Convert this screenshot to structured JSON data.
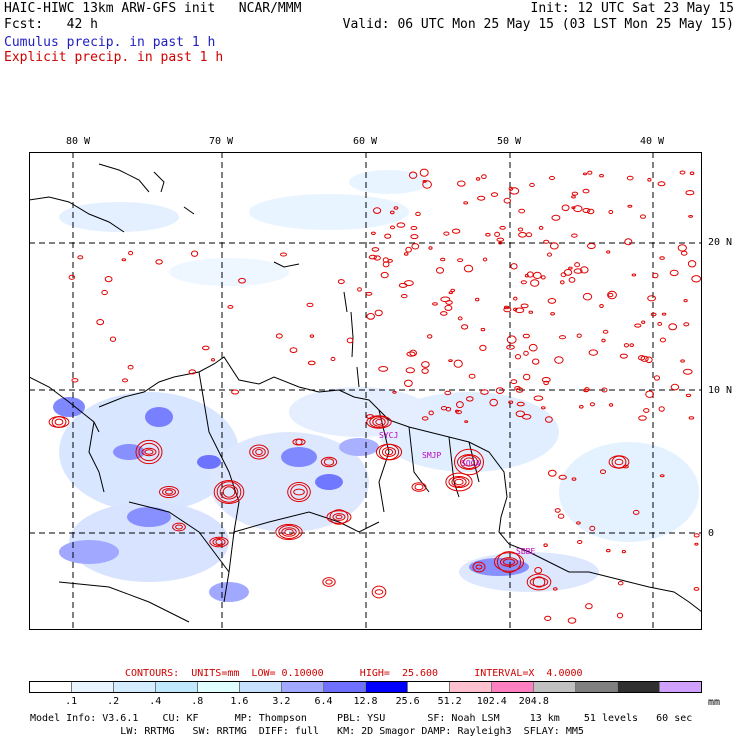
{
  "header": {
    "line1_left": "HAIC-HIWC 13km ARW-GFS init   NCAR/MMM",
    "line1_right": "Init: 12 UTC Sat 23 May 15",
    "line2_left": "Fcst:   42 h",
    "line2_right": "Valid: 06 UTC Mon 25 May 15 (03 LST Mon 25 May 15)",
    "line3": "Cumulus precip. in past 1 h",
    "line4": "Explicit precip. in past 1 h"
  },
  "map": {
    "lon_labels": [
      "80 W",
      "70 W",
      "60 W",
      "50 W",
      "40 W"
    ],
    "lat_labels": [
      "20 N",
      "10 N",
      "0"
    ],
    "stations": [
      "SYCJ",
      "SMJP",
      "SOCA",
      "SBBE"
    ],
    "colors": {
      "grid": "#000000",
      "coast": "#000000",
      "explicit_contour": "#e00000",
      "station": "#c000c0"
    }
  },
  "contours": {
    "label": "CONTOURS:  UNITS=mm  LOW= 0.10000      HIGH=  25.600      INTERVAL=X  4.0000"
  },
  "colorbar": {
    "colors": [
      "#ffffff",
      "#e8f4ff",
      "#d4ecff",
      "#c0e8ff",
      "#e0ffff",
      "#c8e0ff",
      "#a0a8ff",
      "#7070ff",
      "#0000ff",
      "#ffffff",
      "#ffc0d0",
      "#ff80c0",
      "#c0c0c0",
      "#808080",
      "#303030",
      "#d0a0ff"
    ],
    "ticks": [
      ".1",
      ".2",
      ".4",
      ".8",
      "1.6",
      "3.2",
      "6.4",
      "12.8",
      "25.6",
      "51.2",
      "102.4",
      "204.8"
    ],
    "unit": "mm"
  },
  "footer": {
    "line1": "Model Info: V3.6.1    CU: KF      MP: Thompson     PBL: YSU       SF: Noah LSM     13 km    51 levels   60 sec",
    "line2": "               LW: RRTMG   SW: RRTMG  DIFF: full   KM: 2D Smagor DAMP: Rayleigh3  SFLAY: MM5"
  }
}
